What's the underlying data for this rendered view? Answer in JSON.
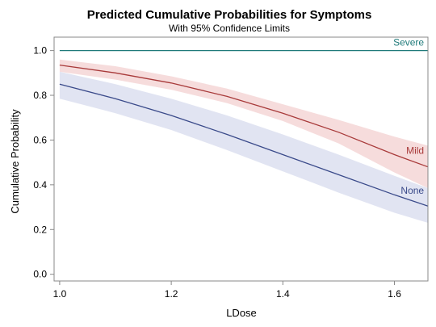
{
  "chart_data": {
    "type": "line",
    "title": "Predicted Cumulative Probabilities for Symptoms",
    "subtitle": "With 95% Confidence Limits",
    "xlabel": "LDose",
    "ylabel": "Cumulative Probability",
    "xlim": [
      0.99,
      1.66
    ],
    "ylim": [
      -0.03,
      1.06
    ],
    "xticks": [
      1.0,
      1.2,
      1.4,
      1.6
    ],
    "xtick_labels": [
      "1.0",
      "1.2",
      "1.4",
      "1.6"
    ],
    "yticks": [
      0.0,
      0.2,
      0.4,
      0.6,
      0.8,
      1.0
    ],
    "ytick_labels": [
      "0.0",
      "0.2",
      "0.4",
      "0.6",
      "0.8",
      "1.0"
    ],
    "grid": false,
    "legend": "inline-labels",
    "x": [
      1.0,
      1.1,
      1.2,
      1.3,
      1.4,
      1.5,
      1.6,
      1.66
    ],
    "series": [
      {
        "name": "Severe",
        "color": "#1f7a7a",
        "band_color": null,
        "values": [
          1.0,
          1.0,
          1.0,
          1.0,
          1.0,
          1.0,
          1.0,
          1.0
        ],
        "lower": null,
        "upper": null
      },
      {
        "name": "Mild",
        "color": "#a83a3a",
        "band_color": "#f4d6d6",
        "values": [
          0.935,
          0.9,
          0.855,
          0.795,
          0.72,
          0.635,
          0.535,
          0.48
        ],
        "lower": [
          0.905,
          0.87,
          0.825,
          0.765,
          0.685,
          0.585,
          0.455,
          0.385
        ],
        "upper": [
          0.96,
          0.93,
          0.885,
          0.83,
          0.76,
          0.69,
          0.615,
          0.575
        ]
      },
      {
        "name": "None",
        "color": "#3a4a8a",
        "band_color": "#dcdff0",
        "values": [
          0.85,
          0.785,
          0.71,
          0.625,
          0.535,
          0.445,
          0.355,
          0.305
        ],
        "lower": [
          0.785,
          0.72,
          0.645,
          0.555,
          0.46,
          0.365,
          0.275,
          0.23
        ],
        "upper": [
          0.905,
          0.85,
          0.785,
          0.71,
          0.625,
          0.535,
          0.44,
          0.385
        ]
      }
    ]
  }
}
